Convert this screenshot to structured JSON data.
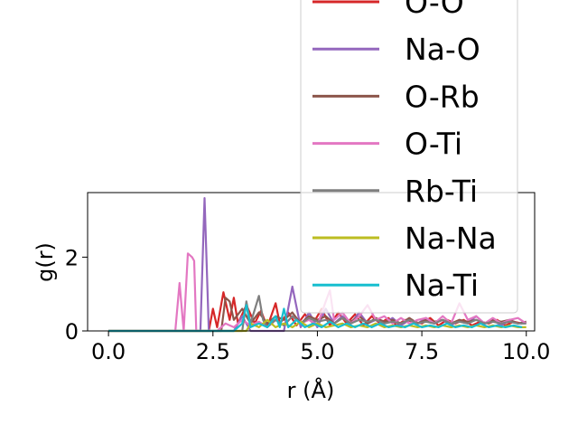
{
  "chart_data": {
    "type": "line",
    "xlabel": "r (Å)",
    "ylabel": "g(r)",
    "xlim": [
      -0.5,
      10.2
    ],
    "ylim": [
      0,
      3.75
    ],
    "xticks": [
      "0.0",
      "2.5",
      "5.0",
      "7.5",
      "10.0"
    ],
    "xtick_values": [
      0,
      2.5,
      5,
      7.5,
      10
    ],
    "yticks": [
      "0",
      "2"
    ],
    "ytick_values": [
      0,
      2
    ],
    "legend_position": "upper right",
    "series": [
      {
        "name": "O-O",
        "color": "#d62728",
        "points": [
          [
            0,
            0
          ],
          [
            2.2,
            0
          ],
          [
            2.4,
            0
          ],
          [
            2.5,
            0.6
          ],
          [
            2.6,
            0.1
          ],
          [
            2.75,
            1.05
          ],
          [
            2.9,
            0.3
          ],
          [
            3.0,
            0.9
          ],
          [
            3.1,
            0.2
          ],
          [
            3.3,
            0.7
          ],
          [
            3.5,
            0.2
          ],
          [
            3.65,
            0.55
          ],
          [
            3.8,
            0.1
          ],
          [
            4.0,
            0.75
          ],
          [
            4.1,
            0.2
          ],
          [
            4.3,
            0.5
          ],
          [
            4.5,
            0.15
          ],
          [
            4.7,
            0.45
          ],
          [
            4.9,
            0.2
          ],
          [
            5.1,
            0.6
          ],
          [
            5.3,
            0.15
          ],
          [
            5.5,
            0.5
          ],
          [
            5.7,
            0.2
          ],
          [
            5.9,
            0.45
          ],
          [
            6.1,
            0.15
          ],
          [
            6.3,
            0.4
          ],
          [
            6.5,
            0.2
          ],
          [
            6.7,
            0.35
          ],
          [
            6.9,
            0.15
          ],
          [
            7.1,
            0.3
          ],
          [
            7.3,
            0.25
          ],
          [
            7.5,
            0.2
          ],
          [
            7.7,
            0.35
          ],
          [
            7.9,
            0.15
          ],
          [
            8.1,
            0.3
          ],
          [
            8.3,
            0.2
          ],
          [
            8.5,
            0.3
          ],
          [
            8.7,
            0.15
          ],
          [
            8.9,
            0.25
          ],
          [
            9.1,
            0.2
          ],
          [
            9.3,
            0.3
          ],
          [
            9.5,
            0.15
          ],
          [
            9.7,
            0.25
          ],
          [
            9.9,
            0.2
          ]
        ]
      },
      {
        "name": "Na-O",
        "color": "#9467bd",
        "points": [
          [
            0,
            0
          ],
          [
            2.2,
            0
          ],
          [
            2.3,
            3.6
          ],
          [
            2.4,
            0
          ],
          [
            3.0,
            0
          ],
          [
            3.2,
            0.4
          ],
          [
            3.4,
            0
          ],
          [
            4.2,
            0
          ],
          [
            4.4,
            1.2
          ],
          [
            4.6,
            0.1
          ],
          [
            4.8,
            0.5
          ],
          [
            5.0,
            0.1
          ],
          [
            5.2,
            0.6
          ],
          [
            5.4,
            0.2
          ],
          [
            5.6,
            0.4
          ],
          [
            5.8,
            0.2
          ],
          [
            6.0,
            0.5
          ],
          [
            6.2,
            0.2
          ],
          [
            6.4,
            0.3
          ],
          [
            6.6,
            0.2
          ],
          [
            6.8,
            0.35
          ],
          [
            7.0,
            0.15
          ],
          [
            7.2,
            0.3
          ],
          [
            7.4,
            0.2
          ],
          [
            7.6,
            0.35
          ],
          [
            7.8,
            0.2
          ],
          [
            8.0,
            0.3
          ],
          [
            8.2,
            0.15
          ],
          [
            8.4,
            0.3
          ],
          [
            8.6,
            0.2
          ],
          [
            8.8,
            0.4
          ],
          [
            9.0,
            0.2
          ],
          [
            9.2,
            0.3
          ],
          [
            9.4,
            0.15
          ],
          [
            9.6,
            0.3
          ],
          [
            9.8,
            0.2
          ],
          [
            10.0,
            0.25
          ]
        ]
      },
      {
        "name": "O-Rb",
        "color": "#8c564b",
        "points": [
          [
            0,
            0
          ],
          [
            2.7,
            0
          ],
          [
            2.8,
            0.9
          ],
          [
            2.9,
            0.8
          ],
          [
            3.0,
            0.3
          ],
          [
            3.2,
            0.6
          ],
          [
            3.4,
            0.2
          ],
          [
            3.6,
            0.5
          ],
          [
            3.8,
            0.2
          ],
          [
            4.0,
            0.4
          ],
          [
            4.2,
            0.3
          ],
          [
            4.4,
            0.5
          ],
          [
            4.6,
            0.2
          ],
          [
            4.8,
            0.4
          ],
          [
            5.0,
            0.3
          ],
          [
            5.2,
            0.4
          ],
          [
            5.4,
            0.2
          ],
          [
            5.6,
            0.35
          ],
          [
            5.8,
            0.25
          ],
          [
            6.0,
            0.4
          ],
          [
            6.2,
            0.2
          ],
          [
            6.4,
            0.35
          ],
          [
            6.6,
            0.25
          ],
          [
            6.8,
            0.3
          ],
          [
            7.0,
            0.2
          ],
          [
            7.2,
            0.35
          ],
          [
            7.4,
            0.2
          ],
          [
            7.6,
            0.3
          ],
          [
            7.8,
            0.25
          ],
          [
            8.0,
            0.3
          ],
          [
            8.2,
            0.2
          ],
          [
            8.4,
            0.3
          ],
          [
            8.6,
            0.25
          ],
          [
            8.8,
            0.3
          ],
          [
            9.0,
            0.2
          ],
          [
            9.2,
            0.3
          ],
          [
            9.4,
            0.25
          ],
          [
            9.6,
            0.3
          ],
          [
            9.8,
            0.2
          ],
          [
            10.0,
            0.25
          ]
        ]
      },
      {
        "name": "O-Ti",
        "color": "#e377c2",
        "points": [
          [
            0,
            0
          ],
          [
            1.6,
            0
          ],
          [
            1.7,
            1.3
          ],
          [
            1.8,
            0
          ],
          [
            1.9,
            2.1
          ],
          [
            2.0,
            2.0
          ],
          [
            2.05,
            1.9
          ],
          [
            2.1,
            0
          ],
          [
            2.6,
            0
          ],
          [
            2.8,
            0.2
          ],
          [
            3.0,
            0.1
          ],
          [
            3.2,
            0.3
          ],
          [
            3.4,
            0.15
          ],
          [
            3.6,
            0.25
          ],
          [
            3.8,
            0.1
          ],
          [
            4.0,
            0.3
          ],
          [
            4.2,
            0.15
          ],
          [
            4.4,
            0.4
          ],
          [
            4.6,
            0.2
          ],
          [
            4.8,
            0.3
          ],
          [
            5.0,
            0.15
          ],
          [
            5.2,
            0.8
          ],
          [
            5.3,
            1.1
          ],
          [
            5.4,
            0.3
          ],
          [
            5.6,
            0.5
          ],
          [
            5.8,
            0.2
          ],
          [
            6.0,
            0.4
          ],
          [
            6.2,
            0.7
          ],
          [
            6.4,
            0.3
          ],
          [
            6.6,
            0.4
          ],
          [
            6.8,
            0.2
          ],
          [
            7.0,
            0.35
          ],
          [
            7.2,
            0.2
          ],
          [
            7.4,
            0.3
          ],
          [
            7.6,
            0.35
          ],
          [
            7.8,
            0.2
          ],
          [
            8.0,
            0.4
          ],
          [
            8.2,
            0.2
          ],
          [
            8.4,
            0.75
          ],
          [
            8.6,
            0.3
          ],
          [
            8.8,
            0.4
          ],
          [
            9.0,
            0.2
          ],
          [
            9.2,
            0.35
          ],
          [
            9.4,
            0.2
          ],
          [
            9.6,
            0.3
          ],
          [
            9.8,
            0.35
          ],
          [
            10.0,
            0.2
          ]
        ]
      },
      {
        "name": "Rb-Ti",
        "color": "#7f7f7f",
        "points": [
          [
            0,
            0
          ],
          [
            3.2,
            0
          ],
          [
            3.3,
            0.8
          ],
          [
            3.4,
            0.2
          ],
          [
            3.6,
            0.95
          ],
          [
            3.7,
            0.3
          ],
          [
            3.8,
            0.1
          ],
          [
            4.0,
            0.3
          ],
          [
            4.2,
            0.15
          ],
          [
            4.4,
            0.4
          ],
          [
            4.6,
            0.2
          ],
          [
            4.8,
            0.35
          ],
          [
            5.0,
            0.25
          ],
          [
            5.2,
            0.3
          ],
          [
            5.4,
            0.2
          ],
          [
            5.6,
            0.35
          ],
          [
            5.8,
            0.2
          ],
          [
            6.0,
            0.3
          ],
          [
            6.2,
            0.25
          ],
          [
            6.4,
            0.3
          ],
          [
            6.6,
            0.2
          ],
          [
            6.8,
            0.25
          ],
          [
            7.0,
            0.2
          ],
          [
            7.2,
            0.3
          ],
          [
            7.4,
            0.2
          ],
          [
            7.6,
            0.25
          ],
          [
            7.8,
            0.2
          ],
          [
            8.0,
            0.3
          ],
          [
            8.2,
            0.2
          ],
          [
            8.4,
            0.25
          ],
          [
            8.6,
            0.2
          ],
          [
            8.8,
            0.3
          ],
          [
            9.0,
            0.2
          ],
          [
            9.2,
            0.25
          ],
          [
            9.4,
            0.2
          ],
          [
            9.6,
            0.25
          ],
          [
            9.8,
            0.2
          ],
          [
            10.0,
            0.2
          ]
        ]
      },
      {
        "name": "Na-Na",
        "color": "#bcbd22",
        "points": [
          [
            0,
            0
          ],
          [
            3.3,
            0
          ],
          [
            3.4,
            0.2
          ],
          [
            3.6,
            0.1
          ],
          [
            3.8,
            0.3
          ],
          [
            4.0,
            0.1
          ],
          [
            4.2,
            0.2
          ],
          [
            4.4,
            0.1
          ],
          [
            4.6,
            0.25
          ],
          [
            4.8,
            0.1
          ],
          [
            5.0,
            0.2
          ],
          [
            5.2,
            0.1
          ],
          [
            5.4,
            0.15
          ],
          [
            5.6,
            0.2
          ],
          [
            5.8,
            0.1
          ],
          [
            6.0,
            0.15
          ],
          [
            6.2,
            0.1
          ],
          [
            6.4,
            0.2
          ],
          [
            6.6,
            0.1
          ],
          [
            6.8,
            0.15
          ],
          [
            7.0,
            0.1
          ],
          [
            7.2,
            0.15
          ],
          [
            7.4,
            0.1
          ],
          [
            7.6,
            0.15
          ],
          [
            7.8,
            0.1
          ],
          [
            8.0,
            0.15
          ],
          [
            8.2,
            0.1
          ],
          [
            8.4,
            0.15
          ],
          [
            8.6,
            0.1
          ],
          [
            8.8,
            0.15
          ],
          [
            9.0,
            0.1
          ],
          [
            9.2,
            0.15
          ],
          [
            9.4,
            0.1
          ],
          [
            9.6,
            0.15
          ],
          [
            9.8,
            0.1
          ],
          [
            10.0,
            0.1
          ]
        ]
      },
      {
        "name": "Na-Ti",
        "color": "#17becf",
        "points": [
          [
            0,
            0
          ],
          [
            3.0,
            0
          ],
          [
            3.2,
            0.2
          ],
          [
            3.3,
            0.7
          ],
          [
            3.4,
            0.1
          ],
          [
            3.6,
            0.2
          ],
          [
            3.8,
            0.1
          ],
          [
            4.0,
            0.4
          ],
          [
            4.1,
            0.1
          ],
          [
            4.2,
            0.6
          ],
          [
            4.3,
            0.1
          ],
          [
            4.5,
            0.3
          ],
          [
            4.7,
            0.1
          ],
          [
            4.9,
            0.2
          ],
          [
            5.1,
            0.1
          ],
          [
            5.3,
            0.25
          ],
          [
            5.5,
            0.1
          ],
          [
            5.7,
            0.2
          ],
          [
            5.9,
            0.1
          ],
          [
            6.1,
            0.2
          ],
          [
            6.3,
            0.1
          ],
          [
            6.5,
            0.2
          ],
          [
            6.7,
            0.1
          ],
          [
            6.9,
            0.15
          ],
          [
            7.1,
            0.1
          ],
          [
            7.3,
            0.2
          ],
          [
            7.5,
            0.1
          ],
          [
            7.7,
            0.15
          ],
          [
            7.9,
            0.1
          ],
          [
            8.1,
            0.2
          ],
          [
            8.3,
            0.1
          ],
          [
            8.5,
            0.15
          ],
          [
            8.7,
            0.1
          ],
          [
            8.9,
            0.2
          ],
          [
            9.1,
            0.1
          ],
          [
            9.3,
            0.15
          ],
          [
            9.5,
            0.1
          ],
          [
            9.7,
            0.15
          ],
          [
            9.9,
            0.1
          ]
        ]
      }
    ]
  }
}
